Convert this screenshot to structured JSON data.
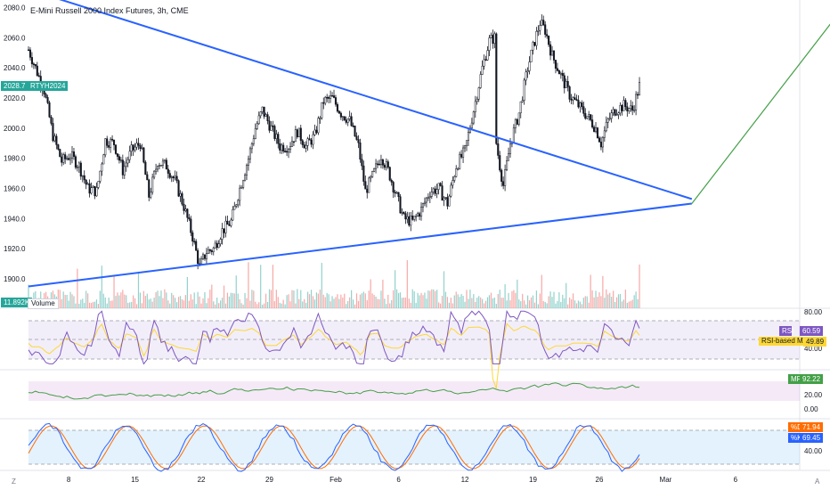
{
  "title": "E-Mini Russell 2000 Index Futures, 3h, CME",
  "price_badge": "2028.7",
  "symbol_badge": "RTYH2024",
  "volume_badge": "11.892K",
  "volume_label": "Volume",
  "rsi": {
    "label": "RSI",
    "value": "60.59",
    "ma_label": "RSI-based MA",
    "ma_value": "49.89"
  },
  "mf": {
    "label": "MF",
    "value": "92.22"
  },
  "stoch": {
    "d_label": "%D",
    "d_value": "71.94",
    "k_label": "%K",
    "k_value": "69.45"
  },
  "left_letter": "Z",
  "right_letter": "A",
  "colors": {
    "up": "#26a69a",
    "down": "#ef5350",
    "candle": "#131722",
    "trend": "#2962ff",
    "projection": "#43a047",
    "rsi": "#7e57c2",
    "rsi_ma": "#fdd835",
    "mf": "#43a047",
    "k": "#2962ff",
    "d": "#ff6d00"
  },
  "chart_data": [
    {
      "type": "candlestick",
      "title": "E-Mini Russell 2000 Index Futures, 3h, CME",
      "x_ticks": [
        "8",
        "15",
        "22",
        "29",
        "Feb",
        "6",
        "12",
        "19",
        "26",
        "Mar",
        "6"
      ],
      "y_ticks": [
        1900,
        1920,
        1940,
        1960,
        1980,
        2000,
        2020,
        2040,
        2060,
        2080
      ],
      "ylim": [
        1890,
        2085
      ],
      "close_path": [
        [
          0,
          2052
        ],
        [
          4,
          2040
        ],
        [
          9,
          2025
        ],
        [
          14,
          1995
        ],
        [
          19,
          1978
        ],
        [
          24,
          1982
        ],
        [
          29,
          1975
        ],
        [
          34,
          1960
        ],
        [
          39,
          1958
        ],
        [
          44,
          1992
        ],
        [
          49,
          1990
        ],
        [
          54,
          1972
        ],
        [
          59,
          1985
        ],
        [
          64,
          1990
        ],
        [
          69,
          1955
        ],
        [
          74,
          1978
        ],
        [
          79,
          1975
        ],
        [
          84,
          1965
        ],
        [
          89,
          1948
        ],
        [
          94,
          1928
        ],
        [
          98,
          1908
        ],
        [
          102,
          1918
        ],
        [
          106,
          1920
        ],
        [
          111,
          1932
        ],
        [
          116,
          1938
        ],
        [
          121,
          1960
        ],
        [
          126,
          1980
        ],
        [
          130,
          2000
        ],
        [
          134,
          2012
        ],
        [
          139,
          2000
        ],
        [
          144,
          1988
        ],
        [
          149,
          1988
        ],
        [
          154,
          1998
        ],
        [
          159,
          1988
        ],
        [
          164,
          1995
        ],
        [
          169,
          2018
        ],
        [
          174,
          2020
        ],
        [
          179,
          2010
        ],
        [
          184,
          2005
        ],
        [
          189,
          1988
        ],
        [
          193,
          1958
        ],
        [
          197,
          1968
        ],
        [
          202,
          1982
        ],
        [
          206,
          1972
        ],
        [
          210,
          1958
        ],
        [
          215,
          1940
        ],
        [
          220,
          1938
        ],
        [
          225,
          1946
        ],
        [
          230,
          1958
        ],
        [
          235,
          1960
        ],
        [
          240,
          1950
        ],
        [
          245,
          1975
        ],
        [
          250,
          1985
        ],
        [
          255,
          2012
        ],
        [
          260,
          2040
        ],
        [
          264,
          2058
        ],
        [
          267,
          2060
        ],
        [
          268,
          1990
        ],
        [
          270,
          1975
        ],
        [
          272,
          1962
        ],
        [
          276,
          1990
        ],
        [
          281,
          2010
        ],
        [
          286,
          2040
        ],
        [
          290,
          2058
        ],
        [
          293,
          2070
        ],
        [
          296,
          2065
        ],
        [
          300,
          2048
        ],
        [
          305,
          2035
        ],
        [
          310,
          2022
        ],
        [
          315,
          2015
        ],
        [
          320,
          2008
        ],
        [
          325,
          2000
        ],
        [
          328,
          1990
        ],
        [
          332,
          2005
        ],
        [
          336,
          2012
        ],
        [
          341,
          2015
        ],
        [
          346,
          2012
        ],
        [
          350,
          2028
        ]
      ],
      "candles_total": 351,
      "last_close": 2028.7,
      "trendlines": [
        {
          "name": "upper",
          "from": [
            0,
            2092
          ],
          "to": [
            380,
            1953
          ]
        },
        {
          "name": "lower",
          "from": [
            0,
            1895
          ],
          "to": [
            380,
            1950
          ]
        },
        {
          "name": "projection",
          "from": [
            380,
            1950
          ],
          "to": [
            480,
            2100
          ]
        }
      ]
    },
    {
      "type": "bar",
      "title": "Volume",
      "last_value": "11.892K"
    },
    {
      "type": "line",
      "title": "RSI",
      "y_ticks": [
        40,
        80
      ],
      "band": [
        30,
        70
      ],
      "levels": [
        30,
        50,
        70
      ],
      "value": 60.59,
      "ma_value": 49.89
    },
    {
      "type": "line",
      "title": "MF",
      "y_ticks": [
        0,
        20
      ],
      "band": [
        20,
        80
      ],
      "value": 92.22
    },
    {
      "type": "line",
      "title": "Stochastic",
      "y_ticks": [
        40
      ],
      "band": [
        20,
        80
      ],
      "d_value": 71.94,
      "k_value": 69.45
    }
  ]
}
